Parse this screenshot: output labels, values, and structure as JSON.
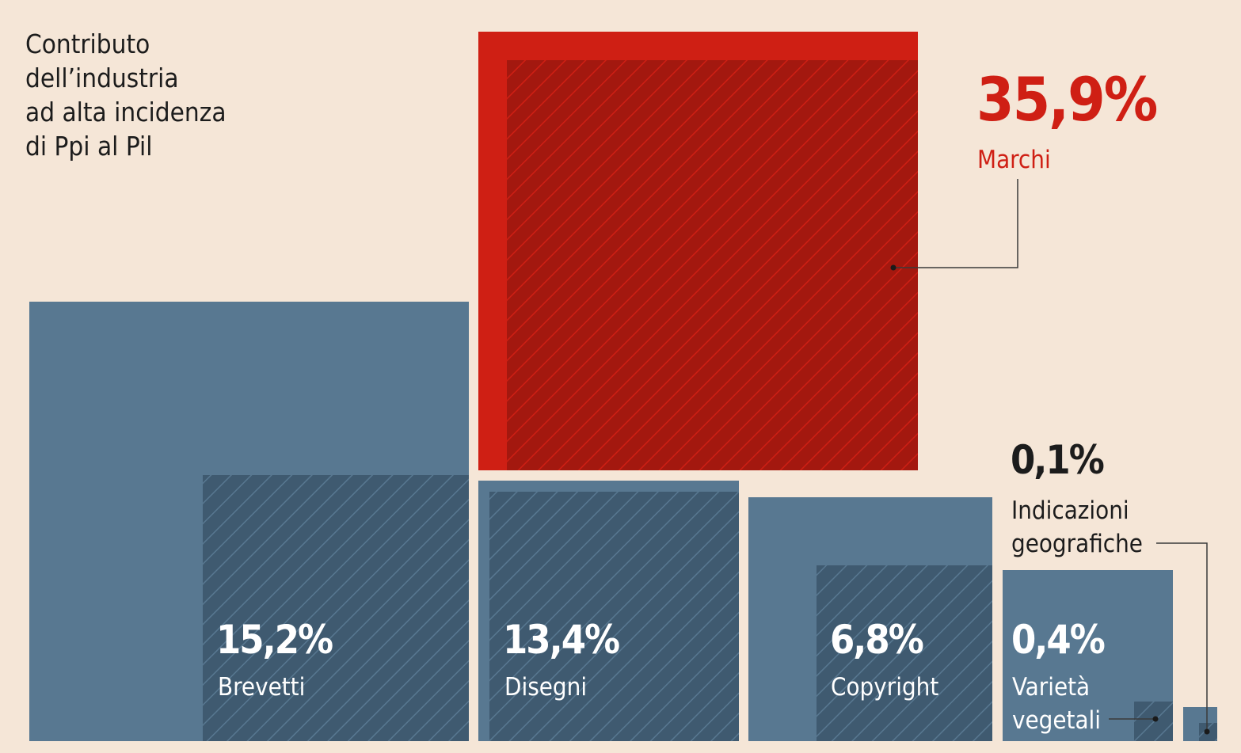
{
  "title": "Contributo\ndell’industria\nad alta incidenza\ndi Ppi al Pil",
  "colors": {
    "background": "#f5e6d7",
    "highlight": "#cf1f14",
    "highlight_hatch": "#a3180f",
    "base": "#587891",
    "base_hatch": "#3f5a70",
    "text_dark": "#1c1c1c",
    "text_light": "#ffffff"
  },
  "chart_data": {
    "type": "treemap",
    "title": "Contributo dell’industria ad alta incidenza di Ppi al Pil",
    "unit": "%",
    "items": [
      {
        "label": "Marchi",
        "value_label": "35,9%",
        "value": 35.9,
        "highlight": true
      },
      {
        "label": "Brevetti",
        "value_label": "15,2%",
        "value": 15.2
      },
      {
        "label": "Disegni",
        "value_label": "13,4%",
        "value": 13.4
      },
      {
        "label": "Copyright",
        "value_label": "6,8%",
        "value": 6.8
      },
      {
        "label": "Varietà vegetali",
        "value_label": "0,4%",
        "value": 0.4
      },
      {
        "label": "Indicazioni geografiche",
        "value_label": "0,1%",
        "value": 0.1
      }
    ]
  }
}
